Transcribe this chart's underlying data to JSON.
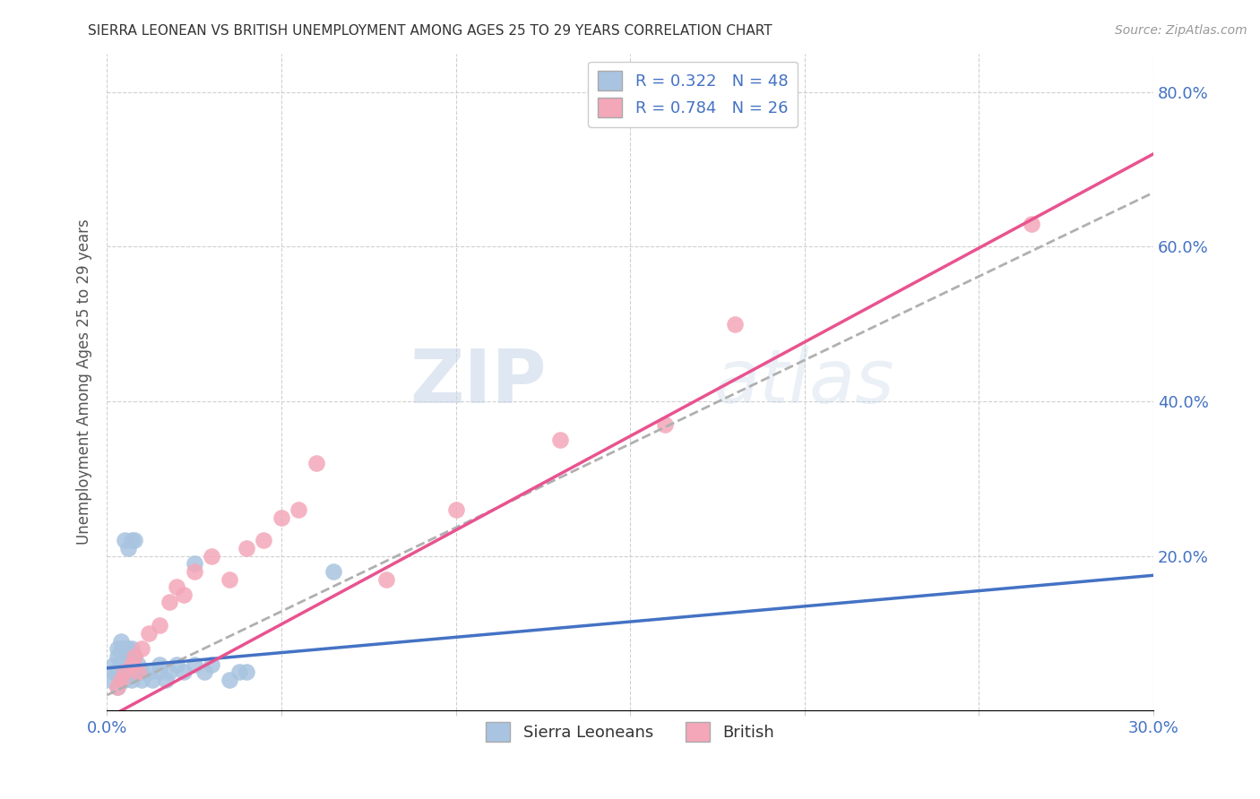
{
  "title": "SIERRA LEONEAN VS BRITISH UNEMPLOYMENT AMONG AGES 25 TO 29 YEARS CORRELATION CHART",
  "source": "Source: ZipAtlas.com",
  "ylabel": "Unemployment Among Ages 25 to 29 years",
  "xlim": [
    0.0,
    0.3
  ],
  "ylim": [
    0.0,
    0.85
  ],
  "x_ticks": [
    0.0,
    0.05,
    0.1,
    0.15,
    0.2,
    0.25,
    0.3
  ],
  "y_ticks_right": [
    0.0,
    0.2,
    0.4,
    0.6,
    0.8
  ],
  "y_tick_labels_right": [
    "",
    "20.0%",
    "40.0%",
    "60.0%",
    "80.0%"
  ],
  "sierra_R": 0.322,
  "sierra_N": 48,
  "british_R": 0.784,
  "british_N": 26,
  "sierra_color": "#a8c4e0",
  "british_color": "#f4a7b9",
  "sierra_line_color": "#4472c4",
  "british_line_color": "#e8538f",
  "trend_line_color": "#b0b0b0",
  "background_color": "#ffffff",
  "grid_color": "#d0d0d0",
  "watermark_zip": "ZIP",
  "watermark_atlas": "atlas",
  "sierra_x": [
    0.001,
    0.002,
    0.002,
    0.003,
    0.003,
    0.003,
    0.003,
    0.004,
    0.004,
    0.004,
    0.004,
    0.005,
    0.005,
    0.005,
    0.005,
    0.005,
    0.005,
    0.006,
    0.006,
    0.006,
    0.006,
    0.006,
    0.007,
    0.007,
    0.007,
    0.007,
    0.008,
    0.008,
    0.008,
    0.009,
    0.01,
    0.01,
    0.012,
    0.013,
    0.015,
    0.015,
    0.017,
    0.018,
    0.02,
    0.022,
    0.025,
    0.025,
    0.028,
    0.03,
    0.035,
    0.038,
    0.04,
    0.065
  ],
  "sierra_y": [
    0.04,
    0.05,
    0.06,
    0.03,
    0.05,
    0.07,
    0.08,
    0.04,
    0.06,
    0.08,
    0.09,
    0.04,
    0.05,
    0.06,
    0.07,
    0.08,
    0.22,
    0.05,
    0.06,
    0.07,
    0.08,
    0.21,
    0.04,
    0.06,
    0.08,
    0.22,
    0.05,
    0.07,
    0.22,
    0.06,
    0.04,
    0.05,
    0.05,
    0.04,
    0.05,
    0.06,
    0.04,
    0.05,
    0.06,
    0.05,
    0.06,
    0.19,
    0.05,
    0.06,
    0.04,
    0.05,
    0.05,
    0.18
  ],
  "british_x": [
    0.003,
    0.004,
    0.005,
    0.007,
    0.008,
    0.009,
    0.01,
    0.012,
    0.015,
    0.018,
    0.02,
    0.022,
    0.025,
    0.03,
    0.035,
    0.04,
    0.045,
    0.05,
    0.055,
    0.06,
    0.08,
    0.1,
    0.13,
    0.16,
    0.18,
    0.265
  ],
  "british_y": [
    0.03,
    0.04,
    0.05,
    0.06,
    0.07,
    0.05,
    0.08,
    0.1,
    0.11,
    0.14,
    0.16,
    0.15,
    0.18,
    0.2,
    0.17,
    0.21,
    0.22,
    0.25,
    0.26,
    0.32,
    0.17,
    0.26,
    0.35,
    0.37,
    0.5,
    0.63
  ],
  "sierra_line_x": [
    0.0,
    0.3
  ],
  "sierra_line_y": [
    0.055,
    0.175
  ],
  "british_line_x": [
    0.0,
    0.3
  ],
  "british_line_y": [
    -0.01,
    0.72
  ],
  "combined_line_x": [
    0.0,
    0.3
  ],
  "combined_line_y": [
    0.02,
    0.67
  ]
}
